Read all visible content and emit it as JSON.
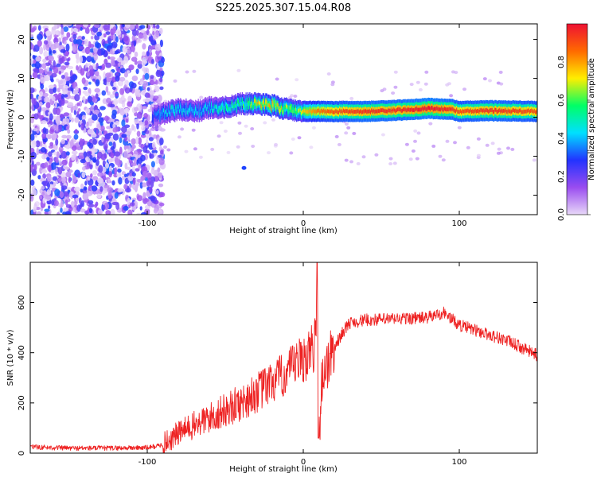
{
  "figure_title": "S225.2025.307.15.04.R08",
  "chart_data": [
    {
      "type": "heatmap",
      "title": "S225.2025.307.15.04.R08",
      "xlabel": "Height of straight line (km)",
      "ylabel": "Frequency (Hz)",
      "xlim": [
        -175,
        150
      ],
      "ylim": [
        -25,
        24
      ],
      "x_ticks": [
        -100,
        0,
        100
      ],
      "x_tick_labels": [
        "-100",
        "0",
        "100"
      ],
      "y_ticks": [
        -20,
        -10,
        0,
        10,
        20
      ],
      "y_tick_labels": [
        "-20",
        "-10",
        "0",
        "10",
        "20"
      ],
      "noise_region_x": [
        -175,
        -92
      ],
      "ridge_x": [
        -97,
        -90,
        -80,
        -70,
        -60,
        -50,
        -40,
        -30,
        -20,
        -10,
        0,
        10,
        20,
        40,
        60,
        80,
        95,
        100,
        120,
        150
      ],
      "ridge_freq_hz": [
        0.0,
        1.0,
        2.0,
        1.5,
        2.5,
        2.5,
        3.5,
        3.5,
        3.0,
        2.0,
        1.5,
        1.5,
        1.5,
        1.5,
        1.8,
        2.3,
        2.0,
        1.5,
        1.7,
        1.5
      ],
      "ridge_amplitude": [
        0.35,
        0.45,
        0.5,
        0.45,
        0.5,
        0.55,
        0.6,
        0.75,
        0.8,
        0.7,
        0.75,
        0.85,
        0.9,
        0.95,
        0.95,
        1.0,
        0.95,
        0.9,
        0.95,
        0.9
      ],
      "colorbar": {
        "label": "Normalized spectral amplitude",
        "range": [
          0,
          1
        ],
        "ticks": [
          0.0,
          0.2,
          0.4,
          0.6,
          0.8
        ],
        "tick_labels": [
          "0.0",
          "0.2",
          "0.4",
          "0.6",
          "0.8"
        ],
        "colors": [
          "#e8d8f8",
          "#9a4cf0",
          "#2233ff",
          "#00e0ff",
          "#00ff66",
          "#ffee00",
          "#ff6a00",
          "#ee1133"
        ]
      }
    },
    {
      "type": "line",
      "xlabel": "Height of straight line (km)",
      "ylabel": "SNR (10 * v/v)",
      "xlim": [
        -175,
        150
      ],
      "ylim": [
        0,
        760
      ],
      "x_ticks": [
        -100,
        0,
        100
      ],
      "x_tick_labels": [
        "-100",
        "0",
        "100"
      ],
      "y_ticks": [
        0,
        200,
        400,
        600
      ],
      "y_tick_labels": [
        "0",
        "200",
        "400",
        "600"
      ],
      "color": "#ee2222",
      "series": [
        {
          "name": "SNR",
          "x": [
            -175,
            -150,
            -125,
            -100,
            -92,
            -85,
            -80,
            -70,
            -60,
            -50,
            -40,
            -30,
            -20,
            -10,
            0,
            5,
            8,
            9,
            10,
            12,
            15,
            20,
            25,
            30,
            40,
            60,
            80,
            90,
            100,
            110,
            120,
            130,
            140,
            150
          ],
          "y": [
            25,
            20,
            20,
            22,
            30,
            55,
            80,
            110,
            140,
            170,
            200,
            240,
            280,
            320,
            380,
            400,
            450,
            760,
            60,
            300,
            350,
            420,
            480,
            520,
            530,
            535,
            540,
            560,
            510,
            490,
            470,
            450,
            420,
            390
          ]
        }
      ]
    }
  ]
}
